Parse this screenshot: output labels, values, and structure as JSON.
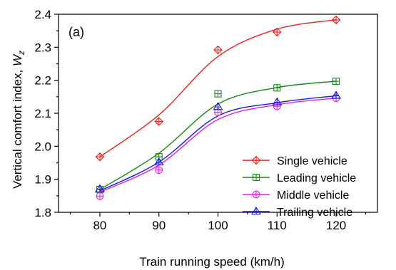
{
  "chart_data": {
    "type": "line",
    "panel_label": "(a)",
    "xlabel": "Train running speed (km/h)",
    "ylabel_main": "Vertical comfort index, ",
    "ylabel_symbol": "W",
    "ylabel_subscript": "z",
    "x": [
      80,
      90,
      100,
      110,
      120
    ],
    "xlim": [
      73,
      127
    ],
    "ylim": [
      1.8,
      2.4
    ],
    "xticks": [
      "80",
      "90",
      "100",
      "110",
      "120"
    ],
    "yticks": [
      "1.8",
      "1.9",
      "2.0",
      "2.1",
      "2.2",
      "2.3",
      "2.4"
    ],
    "legend_position": "bottom-right",
    "series": [
      {
        "name": "Single vehicle",
        "color": "#e8211a",
        "marker": "diamond-cross",
        "values": [
          1.968,
          2.075,
          2.292,
          2.346,
          2.383
        ],
        "curve": [
          1.968,
          2.095,
          2.272,
          2.355,
          2.383
        ]
      },
      {
        "name": "Leading vehicle",
        "color": "#158a15",
        "marker": "square-cross",
        "values": [
          1.869,
          1.968,
          2.159,
          2.177,
          2.197
        ],
        "curve": [
          1.869,
          1.979,
          2.128,
          2.178,
          2.197
        ]
      },
      {
        "name": "Middle vehicle",
        "color": "#e020e0",
        "marker": "circle-cross",
        "values": [
          1.849,
          1.928,
          2.103,
          2.121,
          2.146
        ],
        "curve": [
          1.861,
          1.943,
          2.081,
          2.126,
          2.146
        ]
      },
      {
        "name": "Trailing vehicle",
        "color": "#1818e0",
        "marker": "triangle-cross",
        "values": [
          1.87,
          1.951,
          2.119,
          2.133,
          2.153
        ],
        "curve": [
          1.865,
          1.952,
          2.092,
          2.132,
          2.153
        ]
      }
    ]
  }
}
